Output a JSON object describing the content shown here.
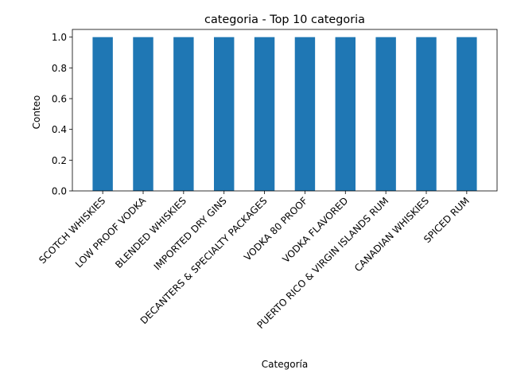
{
  "chart_data": {
    "type": "bar",
    "title": "categoria - Top 10 categoria",
    "xlabel": "Categoría",
    "ylabel": "Conteo",
    "categories": [
      "SCOTCH WHISKIES",
      "LOW PROOF VODKA",
      "BLENDED WHISKIES",
      "IMPORTED DRY GINS",
      "DECANTERS & SPECIALTY PACKAGES",
      "VODKA 80 PROOF",
      "VODKA FLAVORED",
      "PUERTO RICO & VIRGIN ISLANDS RUM",
      "CANADIAN WHISKIES",
      "SPICED RUM"
    ],
    "values": [
      1,
      1,
      1,
      1,
      1,
      1,
      1,
      1,
      1,
      1
    ],
    "ylim": [
      0,
      1.05
    ],
    "yticks": [
      "0.0",
      "0.2",
      "0.4",
      "0.6",
      "0.8",
      "1.0"
    ],
    "grid": false,
    "legend": false,
    "bar_color": "#1f77b4"
  }
}
